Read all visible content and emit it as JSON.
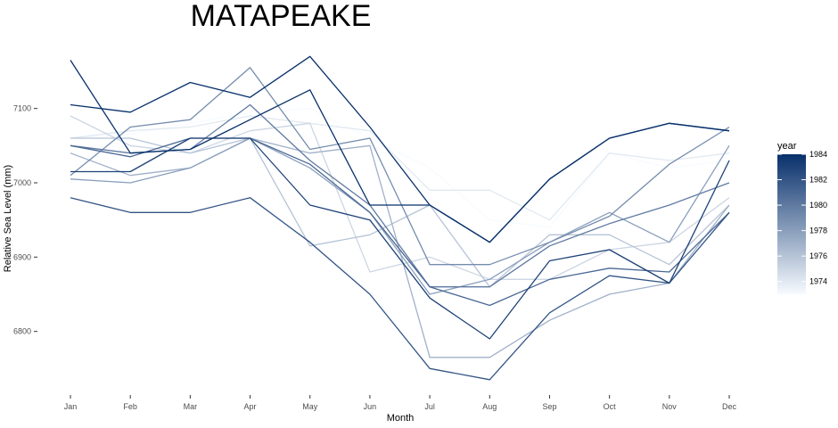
{
  "chart_data": {
    "type": "line",
    "title": "MATAPEAKE",
    "xlabel": "Month",
    "ylabel": "Relative Sea Level (mm)",
    "categories": [
      "Jan",
      "Feb",
      "Mar",
      "Apr",
      "May",
      "Jun",
      "Jul",
      "Aug",
      "Sep",
      "Oct",
      "Nov",
      "Dec"
    ],
    "ylim": [
      6718,
      7180
    ],
    "yticks": [
      6800,
      6900,
      7000,
      7100
    ],
    "grid": false,
    "legend": {
      "title": "year",
      "placement": "right",
      "type": "colorbar",
      "range": [
        1973,
        1984
      ],
      "ticks": [
        1974,
        1976,
        1978,
        1980,
        1982,
        1984
      ],
      "color_low": "#f7fbff",
      "color_high": "#08306b"
    },
    "series": [
      {
        "year": 1973,
        "values": [
          7060,
          7065,
          7080,
          7095,
          7100,
          7060,
          7020,
          6950,
          6940,
          7040,
          7020,
          7030
        ]
      },
      {
        "year": 1974,
        "values": [
          7060,
          7070,
          7075,
          7090,
          7080,
          7070,
          6990,
          6990,
          6950,
          7040,
          7030,
          7040
        ]
      },
      {
        "year": 1975,
        "values": [
          7090,
          7050,
          7040,
          7070,
          7080,
          6880,
          6900,
          6870,
          6870,
          6910,
          6920,
          6980
        ]
      },
      {
        "year": 1976,
        "values": [
          7060,
          7060,
          7040,
          7060,
          6915,
          6930,
          6970,
          6860,
          6930,
          6930,
          6890,
          6970
        ]
      },
      {
        "year": 1977,
        "values": [
          7040,
          7010,
          7020,
          7060,
          7040,
          7050,
          6765,
          6765,
          6815,
          6850,
          6865,
          6970
        ]
      },
      {
        "year": 1978,
        "values": [
          7005,
          7000,
          7020,
          7060,
          7020,
          6960,
          6850,
          6870,
          6920,
          6960,
          6920,
          7050
        ]
      },
      {
        "year": 1979,
        "values": [
          7010,
          7075,
          7085,
          7155,
          7045,
          7060,
          6890,
          6890,
          6920,
          6955,
          7025,
          7075
        ]
      },
      {
        "year": 1980,
        "values": [
          7050,
          7040,
          7045,
          7105,
          7030,
          6970,
          6860,
          6860,
          6915,
          6945,
          6970,
          7000
        ]
      },
      {
        "year": 1981,
        "values": [
          7050,
          7035,
          7060,
          7060,
          7025,
          6960,
          6860,
          6835,
          6870,
          6885,
          6880,
          6960
        ]
      },
      {
        "year": 1982,
        "values": [
          6980,
          6960,
          6960,
          6980,
          6920,
          6850,
          6750,
          6735,
          6825,
          6875,
          6865,
          6960
        ]
      },
      {
        "year": 1983,
        "values": [
          7015,
          7015,
          7060,
          7060,
          6970,
          6950,
          6845,
          6790,
          6895,
          6910,
          6865,
          7030
        ]
      },
      {
        "year": 1984,
        "values": [
          7165,
          7040,
          7045,
          7085,
          7125,
          6970,
          6970,
          6920,
          7005,
          7060,
          7080,
          7070
        ]
      },
      {
        "year": 1984,
        "values": [
          7105,
          7095,
          7135,
          7115,
          7170,
          7075,
          6970,
          6920,
          7005,
          7060,
          7080,
          7070
        ]
      }
    ]
  }
}
